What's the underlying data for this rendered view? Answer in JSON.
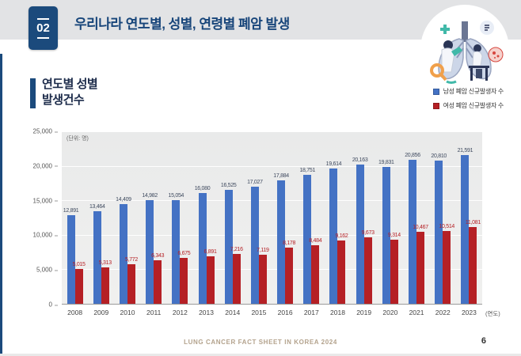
{
  "page": {
    "badge": "02",
    "title": "우리나라 연도별, 성별, 연령별 폐암 발생",
    "section_title_line1": "연도별 성별",
    "section_title_line2": "발생건수",
    "footer": "LUNG CANCER FACT SHEET IN KOREA 2024",
    "page_number": "6"
  },
  "colors": {
    "accent_navy": "#1b4a7c",
    "male_bar": "#4472c4",
    "female_bar": "#b52025",
    "male_label": "#3f4a5f",
    "female_label": "#b52025",
    "header_band": "#e2e3e5",
    "footer_text": "#b3a28c"
  },
  "legend": [
    {
      "label": "남성 폐암 신규발생자 수",
      "color": "#4472c4"
    },
    {
      "label": "여성 폐암 신규발생자 수",
      "color": "#b52025"
    }
  ],
  "chart_data": {
    "type": "bar",
    "title": "연도별 성별 발생건수",
    "unit_label": "(단위: 명)",
    "x_axis_suffix": "(연도)",
    "categories": [
      "2008",
      "2009",
      "2010",
      "2011",
      "2012",
      "2013",
      "2014",
      "2015",
      "2016",
      "2017",
      "2018",
      "2019",
      "2020",
      "2021",
      "2022",
      "2023"
    ],
    "series": [
      {
        "name": "남성 폐암 신규발생자 수",
        "color": "#4472c4",
        "values": [
          12891,
          13464,
          14409,
          14982,
          15054,
          16080,
          16525,
          17027,
          17884,
          18751,
          19614,
          20163,
          19831,
          20856,
          20810,
          21591
        ]
      },
      {
        "name": "여성 폐암 신규발생자 수",
        "color": "#b52025",
        "values": [
          5015,
          5313,
          5772,
          6343,
          6675,
          6891,
          7216,
          7119,
          8178,
          8484,
          9162,
          9673,
          9314,
          10467,
          10514,
          11081
        ]
      }
    ],
    "ylim": [
      0,
      25000
    ],
    "y_ticks": [
      "25,000",
      "20,000",
      "15,000",
      "10,000",
      "5,000",
      "0"
    ],
    "grid": true,
    "legend_position": "top-right",
    "xlabel": "(연도)",
    "ylabel": "(단위: 명)"
  }
}
